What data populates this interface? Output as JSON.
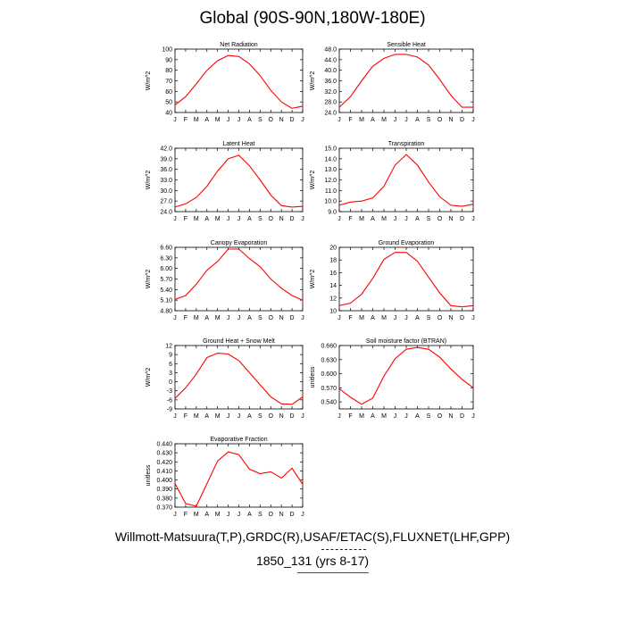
{
  "page": {
    "title": "Global (90S-90N,180W-180E)",
    "footer_line1": "Willmott-Matsuura(T,P),GRDC(R),USAF/ETAC(S),FLUXNET(LHF,GPP)",
    "footer_line2": "1850_131 (yrs 8-17)"
  },
  "colors": {
    "line": "#ff0000",
    "axis": "#000000",
    "legend_dash_blue": "#0000ff",
    "legend_line_red": "#ff0000"
  },
  "chart_data": [
    {
      "type": "line",
      "title": "Net Radiation",
      "ylabel": "W/m^2",
      "categories": [
        "J",
        "F",
        "M",
        "A",
        "M",
        "J",
        "J",
        "A",
        "S",
        "O",
        "N",
        "D",
        "J"
      ],
      "ylim": [
        40,
        100
      ],
      "yticks": [
        "40",
        "50",
        "60",
        "70",
        "80",
        "90",
        "100"
      ],
      "values": [
        47,
        55,
        67,
        80,
        89,
        94,
        93,
        86,
        75,
        61,
        50,
        44,
        46
      ]
    },
    {
      "type": "line",
      "title": "Sensible Heat",
      "ylabel": "W/m^2",
      "categories": [
        "J",
        "F",
        "M",
        "A",
        "M",
        "J",
        "J",
        "A",
        "S",
        "O",
        "N",
        "D",
        "J"
      ],
      "ylim": [
        24,
        48
      ],
      "yticks": [
        "24.0",
        "28.0",
        "32.0",
        "36.0",
        "40.0",
        "44.0",
        "48.0"
      ],
      "values": [
        26,
        30,
        36,
        41.5,
        44.5,
        46,
        46,
        45,
        42,
        36.5,
        30.5,
        26,
        26
      ]
    },
    {
      "type": "line",
      "title": "Latent Heat",
      "ylabel": "W/m^2",
      "categories": [
        "J",
        "F",
        "M",
        "A",
        "M",
        "J",
        "J",
        "A",
        "S",
        "O",
        "N",
        "D",
        "J"
      ],
      "ylim": [
        24,
        42
      ],
      "yticks": [
        "24.0",
        "27.0",
        "30.0",
        "33.0",
        "36.0",
        "39.0",
        "42.0"
      ],
      "values": [
        25.3,
        26.2,
        28.0,
        31.2,
        35.5,
        39.0,
        40.0,
        37.0,
        33.0,
        28.7,
        25.7,
        25.3,
        25.5
      ]
    },
    {
      "type": "line",
      "title": "Transpiration",
      "ylabel": "W/m^2",
      "categories": [
        "J",
        "F",
        "M",
        "A",
        "M",
        "J",
        "J",
        "A",
        "S",
        "O",
        "N",
        "D",
        "J"
      ],
      "ylim": [
        9,
        15
      ],
      "yticks": [
        "9.0",
        "10.0",
        "11.0",
        "12.0",
        "13.0",
        "14.0",
        "15.0"
      ],
      "values": [
        9.6,
        9.9,
        10.0,
        10.3,
        11.4,
        13.4,
        14.4,
        13.4,
        11.8,
        10.4,
        9.6,
        9.5,
        9.7
      ]
    },
    {
      "type": "line",
      "title": "Canopy Evaporation",
      "ylabel": "W/m^2",
      "categories": [
        "J",
        "F",
        "M",
        "A",
        "M",
        "J",
        "J",
        "A",
        "S",
        "O",
        "N",
        "D",
        "J"
      ],
      "ylim": [
        4.8,
        6.6
      ],
      "yticks": [
        "4.80",
        "5.10",
        "5.40",
        "5.70",
        "6.00",
        "6.30",
        "6.60"
      ],
      "values": [
        5.12,
        5.23,
        5.55,
        5.95,
        6.2,
        6.55,
        6.55,
        6.28,
        6.05,
        5.7,
        5.44,
        5.23,
        5.1
      ]
    },
    {
      "type": "line",
      "title": "Ground Evaporation",
      "ylabel": "W/m^2",
      "categories": [
        "J",
        "F",
        "M",
        "A",
        "M",
        "J",
        "J",
        "A",
        "S",
        "O",
        "N",
        "D",
        "J"
      ],
      "ylim": [
        10,
        20
      ],
      "yticks": [
        "10",
        "12",
        "14",
        "16",
        "18",
        "20"
      ],
      "values": [
        10.8,
        11.2,
        12.6,
        15.1,
        18.1,
        19.2,
        19.2,
        17.8,
        15.3,
        12.8,
        10.8,
        10.6,
        10.8
      ]
    },
    {
      "type": "line",
      "title": "Ground Heat + Snow Melt",
      "ylabel": "W/m^2",
      "categories": [
        "J",
        "F",
        "M",
        "A",
        "M",
        "J",
        "J",
        "A",
        "S",
        "O",
        "N",
        "D",
        "J"
      ],
      "ylim": [
        -9,
        12
      ],
      "yticks": [
        "-9",
        "-6",
        "-3",
        "0",
        "3",
        "6",
        "9",
        "12"
      ],
      "values": [
        -5.5,
        -2,
        2.5,
        8,
        9.5,
        9.2,
        7,
        3,
        -1,
        -5,
        -7.3,
        -7.5,
        -5
      ]
    },
    {
      "type": "line",
      "title": "Soil moisture factor (BTRAN)",
      "ylabel": "unitless",
      "categories": [
        "J",
        "F",
        "M",
        "A",
        "M",
        "J",
        "J",
        "A",
        "S",
        "O",
        "N",
        "D",
        "J"
      ],
      "ylim": [
        0.525,
        0.66
      ],
      "yticks": [
        "0.540",
        "0.570",
        "0.600",
        "0.630",
        "0.660"
      ],
      "values": [
        0.568,
        0.55,
        0.535,
        0.548,
        0.595,
        0.632,
        0.652,
        0.656,
        0.652,
        0.635,
        0.61,
        0.588,
        0.57
      ]
    },
    {
      "type": "line",
      "title": "Evaporative Fraction",
      "ylabel": "unitless",
      "categories": [
        "J",
        "F",
        "M",
        "A",
        "M",
        "J",
        "J",
        "A",
        "S",
        "O",
        "N",
        "D",
        "J"
      ],
      "ylim": [
        0.37,
        0.44
      ],
      "yticks": [
        "0.370",
        "0.380",
        "0.390",
        "0.400",
        "0.410",
        "0.420",
        "0.430",
        "0.440"
      ],
      "values": [
        0.396,
        0.374,
        0.371,
        0.396,
        0.421,
        0.431,
        0.428,
        0.412,
        0.407,
        0.409,
        0.402,
        0.413,
        0.395
      ]
    }
  ]
}
